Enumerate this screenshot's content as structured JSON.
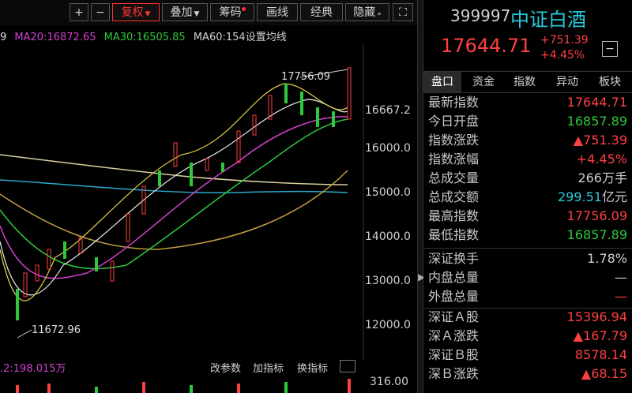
{
  "toolbar": {
    "plus": "+",
    "minus": "−",
    "fuquan": "复权",
    "diejia": "叠加",
    "chouma": "筹码",
    "huaxian": "画线",
    "jingdian": "经典",
    "yincang": "隐藏",
    "more": "»",
    "expand": "⛶"
  },
  "ma": {
    "ma10_tail": "9",
    "ma20": "MA20:16872.65",
    "ma30": "MA30:16505.85",
    "ma60": "MA60:154",
    "settings": "设置均线"
  },
  "chart": {
    "prices": [
      "16667.2",
      "16000.0",
      "15000.0",
      "14000.0",
      "13000.0",
      "12000.0"
    ],
    "high_marker": "17756.09",
    "low_marker": "11672.96",
    "volume_label": "316.00"
  },
  "indicator_bar": {
    "vol_text": ".2:198.015万",
    "gai_canshu": "改参数",
    "jia_zhibiao": "加指标",
    "huan_zhibiao": "换指标"
  },
  "header": {
    "code": "399997",
    "name": "中证白酒",
    "price": "17644.71",
    "change": "+751.39",
    "change_pct": "+4.45%",
    "minus_btn": "−"
  },
  "tabs": [
    "盘口",
    "资金",
    "指数",
    "异动",
    "板块"
  ],
  "quote": [
    {
      "label": "最新指数",
      "value": "17644.71",
      "color": "#ff4040"
    },
    {
      "label": "今日开盘",
      "value": "16857.89",
      "color": "#2ec93b"
    },
    {
      "label": "指数涨跌",
      "value": "▲751.39",
      "color": "#ff4040"
    },
    {
      "label": "指数涨幅",
      "value": "+4.45%",
      "color": "#ff4040"
    },
    {
      "label": "总成交量",
      "value": "266",
      "unit": "万手",
      "color": "#cfcfcf"
    },
    {
      "label": "总成交额",
      "value": "299.51",
      "unit": "亿元",
      "color": "#29c9d9"
    },
    {
      "label": "最高指数",
      "value": "17756.09",
      "color": "#ff4040"
    },
    {
      "label": "最低指数",
      "value": "16857.89",
      "color": "#2ec93b"
    }
  ],
  "turnover": [
    {
      "label": "深证换手",
      "value": "1.78%",
      "color": "#cfcfcf"
    },
    {
      "label": "内盘总量",
      "value": "—",
      "color": "#cfcfcf"
    },
    {
      "label": "外盘总量",
      "value": "—",
      "color": "#ff4040"
    }
  ],
  "market": [
    {
      "label": "深证Ａ股",
      "value": "15396.94",
      "color": "#ff4040"
    },
    {
      "label": "深Ａ涨跌",
      "value": "▲167.79",
      "color": "#ff4040"
    },
    {
      "label": "深证Ｂ股",
      "value": "8578.14",
      "color": "#ff4040"
    },
    {
      "label": "深Ｂ涨跌",
      "value": "▲68.15",
      "color": "#ff4040"
    }
  ],
  "colors": {
    "up": "#ff4040",
    "down": "#2ec93b",
    "ma20": "#d040d0",
    "ma30": "#2ec93b",
    "ma60": "#d0d0d0"
  }
}
